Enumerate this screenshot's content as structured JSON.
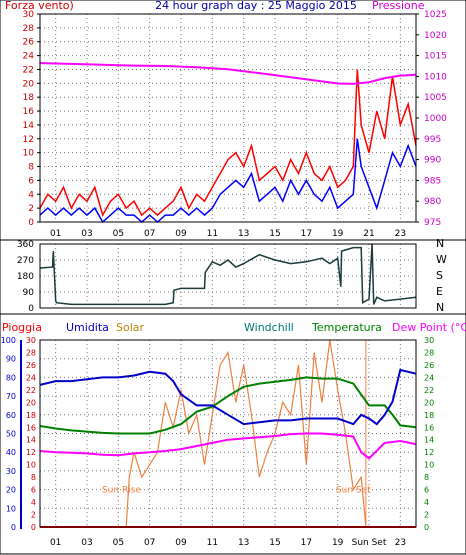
{
  "chart_data": [
    {
      "type": "line",
      "title": "24 hour graph day : 25 Maggio 2015",
      "left_label": "Forza vento)",
      "right_label": "Pressione",
      "colors": {
        "gust": "#ff0000",
        "wind": "#0000ff",
        "pressure": "#ff00ff",
        "left_axis": "#cc0000",
        "right_axis": "#cc00cc"
      },
      "x_ticks": [
        "01",
        "03",
        "05",
        "07",
        "09",
        "11",
        "13",
        "15",
        "17",
        "19",
        "21",
        "23"
      ],
      "x_tick_hours": [
        1,
        3,
        5,
        7,
        9,
        11,
        13,
        15,
        17,
        19,
        21,
        23
      ],
      "xlim": [
        0,
        24
      ],
      "y_left_ticks": [
        0,
        2,
        4,
        6,
        8,
        10,
        12,
        14,
        16,
        18,
        20,
        22,
        24,
        26,
        28,
        30
      ],
      "y_left_lim": [
        0,
        30
      ],
      "y_right_ticks": [
        975,
        980,
        985,
        990,
        995,
        1000,
        1005,
        1010,
        1015,
        1020,
        1025
      ],
      "y_right_lim": [
        975,
        1025
      ],
      "series": [
        {
          "key": "gust",
          "axis": "left",
          "x": [
            0,
            0.5,
            1,
            1.5,
            2,
            2.5,
            3,
            3.5,
            4,
            4.5,
            5,
            5.5,
            6,
            6.5,
            7,
            7.5,
            8,
            8.5,
            9,
            9.5,
            10,
            10.5,
            11,
            11.5,
            12,
            12.5,
            13,
            13.5,
            14,
            14.5,
            15,
            15.5,
            16,
            16.5,
            17,
            17.5,
            18,
            18.5,
            19,
            19.5,
            20,
            20.25,
            20.5,
            21,
            21.5,
            22,
            22.5,
            23,
            23.5,
            24
          ],
          "y": [
            2,
            4,
            3,
            5,
            2,
            4,
            3,
            5,
            1,
            3,
            4,
            2,
            3,
            1,
            2,
            1,
            2,
            3,
            5,
            2,
            4,
            3,
            5,
            7,
            9,
            10,
            8,
            11,
            6,
            7,
            8,
            6,
            9,
            7,
            10,
            7,
            6,
            8,
            5,
            6,
            8,
            22,
            14,
            10,
            16,
            12,
            21,
            14,
            17,
            11
          ]
        },
        {
          "key": "wind",
          "axis": "left",
          "x": [
            0,
            0.5,
            1,
            1.5,
            2,
            2.5,
            3,
            3.5,
            4,
            4.5,
            5,
            5.5,
            6,
            6.5,
            7,
            7.5,
            8,
            8.5,
            9,
            9.5,
            10,
            10.5,
            11,
            11.5,
            12,
            12.5,
            13,
            13.5,
            14,
            14.5,
            15,
            15.5,
            16,
            16.5,
            17,
            17.5,
            18,
            18.5,
            19,
            19.5,
            20,
            20.25,
            20.5,
            21,
            21.5,
            22,
            22.5,
            23,
            23.5,
            24
          ],
          "y": [
            1,
            2,
            1,
            2,
            1,
            2,
            1,
            2,
            0,
            1,
            2,
            1,
            1,
            0,
            1,
            0,
            1,
            1,
            2,
            1,
            2,
            1,
            2,
            4,
            5,
            6,
            5,
            7,
            3,
            4,
            5,
            3,
            6,
            4,
            6,
            4,
            3,
            5,
            2,
            3,
            4,
            12,
            8,
            5,
            2,
            6,
            10,
            8,
            11,
            8
          ]
        },
        {
          "key": "pressure",
          "axis": "right",
          "x": [
            0,
            2,
            4,
            6,
            8,
            10,
            12,
            14,
            16,
            18,
            19,
            20,
            21,
            22,
            23,
            24
          ],
          "y": [
            1013.2,
            1013,
            1012.8,
            1012.6,
            1012.5,
            1012.2,
            1011.7,
            1010.8,
            1009.8,
            1008.8,
            1008.3,
            1008.2,
            1008.6,
            1009.6,
            1010.2,
            1010.4
          ]
        }
      ]
    },
    {
      "type": "line",
      "x_ticks": [
        "01",
        "03",
        "05",
        "07",
        "09",
        "11",
        "13",
        "15",
        "17",
        "19",
        "21",
        "23"
      ],
      "xlim": [
        0,
        24
      ],
      "y_ticks": [
        0,
        90,
        180,
        270,
        360
      ],
      "ylim": [
        0,
        360
      ],
      "right_labels": [
        "N",
        "W",
        "S",
        "E",
        "N"
      ],
      "color": "#1b3a3a",
      "series": [
        {
          "key": "direction",
          "x": [
            0,
            0.8,
            0.85,
            1.0,
            1.05,
            2,
            3,
            4,
            5,
            6,
            7,
            8,
            8.5,
            8.55,
            9,
            10,
            10.5,
            10.55,
            11,
            11.5,
            12,
            12.5,
            13,
            14,
            15,
            16,
            17,
            18,
            18.5,
            19,
            19.2,
            19.25,
            20,
            20.5,
            20.6,
            21,
            21.2,
            21.3,
            21.5,
            22,
            23,
            24
          ],
          "y": [
            225,
            230,
            320,
            40,
            30,
            20,
            20,
            20,
            20,
            20,
            20,
            20,
            30,
            100,
            110,
            110,
            110,
            200,
            260,
            240,
            270,
            230,
            250,
            300,
            270,
            250,
            260,
            280,
            250,
            280,
            120,
            320,
            340,
            340,
            30,
            50,
            360,
            20,
            60,
            40,
            50,
            60
          ]
        }
      ]
    },
    {
      "type": "line",
      "labels": {
        "rain": "Pioggia",
        "humidity": "Umidita",
        "solar": "Solar",
        "windchill": "Windchill",
        "temperature": "Temperatura",
        "dewpoint": "Dew Point (°C)"
      },
      "colors": {
        "rain": "#ff0000",
        "humidity": "#0000cc",
        "solar": "#f08040",
        "windchill": "#00aa88",
        "temperature": "#008000",
        "dewpoint": "#ff00ff",
        "sunset_line": "#ff8040"
      },
      "annotations": [
        {
          "text": "Sun Rise",
          "x": 5.2,
          "y": 6
        },
        {
          "text": "Sun Set",
          "x": 20.0,
          "y": 6
        }
      ],
      "sunset_hour": 20.8,
      "x_ticks": [
        "01",
        "03",
        "05",
        "07",
        "09",
        "11",
        "13",
        "15",
        "17",
        "19",
        "Sun Set",
        "23"
      ],
      "x_tick_hours": [
        1,
        3,
        5,
        7,
        9,
        11,
        13,
        15,
        17,
        19,
        21,
        23
      ],
      "xlim": [
        0,
        24
      ],
      "y_humidity_ticks": [
        0,
        10,
        20,
        30,
        40,
        50,
        60,
        70,
        80,
        90,
        100
      ],
      "y_humidity_lim": [
        0,
        100
      ],
      "y_rain_ticks": [
        0,
        2,
        4,
        6,
        8,
        10,
        12,
        14,
        16,
        18,
        20,
        22,
        24,
        26,
        28,
        30
      ],
      "y_rain_lim": [
        0,
        30
      ],
      "y_temp_ticks": [
        0,
        2,
        4,
        6,
        8,
        10,
        12,
        14,
        16,
        18,
        20,
        22,
        24,
        26,
        28,
        30
      ],
      "y_temp_lim": [
        0,
        30
      ],
      "series": [
        {
          "key": "humidity",
          "axis": "humidity",
          "x": [
            0,
            1,
            2,
            3,
            4,
            5,
            6,
            7,
            8,
            8.5,
            9,
            10,
            11,
            12,
            13,
            14,
            15,
            16,
            17,
            18,
            19,
            20,
            20.5,
            21,
            21.5,
            22,
            22.5,
            23,
            23.5,
            24
          ],
          "y": [
            76,
            78,
            78,
            79,
            80,
            80,
            81,
            83,
            82,
            78,
            71,
            65,
            65,
            60,
            55,
            56,
            57,
            57,
            58,
            58,
            58,
            55,
            60,
            58,
            55,
            60,
            67,
            84,
            83,
            82
          ]
        },
        {
          "key": "temperature",
          "axis": "temp",
          "x": [
            0,
            1,
            2,
            3,
            4,
            5,
            6,
            7,
            8,
            9,
            10,
            11,
            12,
            13,
            14,
            15,
            16,
            17,
            18,
            19,
            20,
            21,
            22,
            22.5,
            23,
            24
          ],
          "y": [
            16.2,
            15.8,
            15.5,
            15.3,
            15.1,
            15.0,
            15.0,
            15.0,
            15.6,
            16.5,
            18.5,
            19.3,
            21,
            22.5,
            23,
            23.3,
            23.6,
            24,
            23.8,
            23.8,
            23,
            19.5,
            19.5,
            18,
            16.3,
            16
          ]
        },
        {
          "key": "dewpoint",
          "axis": "temp",
          "x": [
            0,
            1,
            2,
            3,
            4,
            5,
            6,
            7,
            8,
            9,
            10,
            11,
            12,
            13,
            14,
            15,
            16,
            17,
            18,
            19,
            20,
            20.5,
            21,
            22,
            23,
            24
          ],
          "y": [
            12.2,
            12.0,
            11.9,
            11.8,
            11.6,
            11.5,
            11.8,
            12,
            12.2,
            12.5,
            13,
            13.5,
            14,
            14.2,
            14.4,
            14.6,
            14.9,
            15,
            15,
            14.8,
            14.5,
            12,
            11,
            13.5,
            13.8,
            13.3
          ]
        },
        {
          "key": "solar",
          "axis": "temp",
          "x": [
            5.5,
            5.7,
            6,
            6.5,
            7,
            7.5,
            8,
            8.5,
            9,
            9.5,
            10,
            10.5,
            11,
            11.5,
            12,
            12.5,
            13,
            13.5,
            14,
            14.5,
            15,
            15.5,
            16,
            16.5,
            17,
            17.5,
            18,
            18.5,
            19,
            19.5,
            20,
            20.5,
            20.8
          ],
          "y": [
            0,
            8,
            12,
            8,
            10,
            12,
            20,
            16,
            22,
            15,
            18,
            10,
            18,
            26,
            28,
            20,
            26,
            18,
            8,
            12,
            15,
            20,
            18,
            26,
            10,
            28,
            20,
            30,
            22,
            15,
            6,
            8,
            0
          ]
        },
        {
          "key": "rain",
          "axis": "rain",
          "x": [
            0,
            24
          ],
          "y": [
            0,
            0
          ]
        }
      ]
    }
  ]
}
